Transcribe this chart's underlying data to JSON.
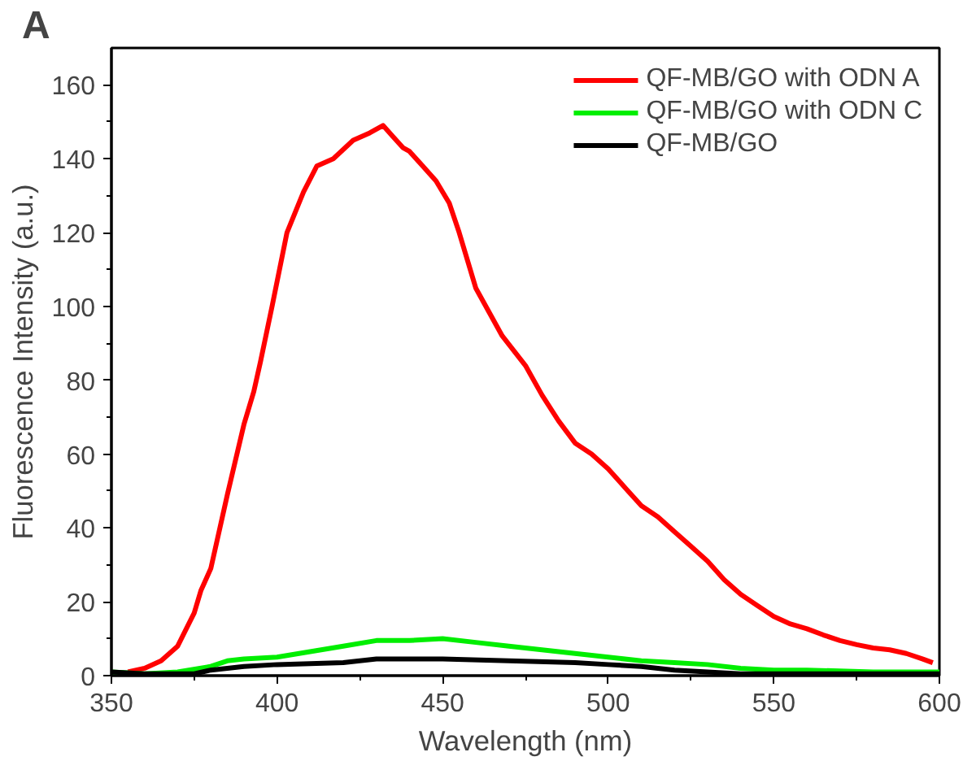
{
  "chart_data": {
    "type": "line",
    "xlabel": "Wavelength (nm)",
    "ylabel": "Fluorescence Intensity (a.u.)",
    "annotations": [
      "A"
    ],
    "xlim": [
      350,
      600
    ],
    "xticks": [
      350,
      400,
      450,
      500,
      550,
      600
    ],
    "ylim": [
      0,
      170
    ],
    "yticks": [
      0,
      20,
      40,
      60,
      80,
      100,
      120,
      140,
      160
    ],
    "grid": false,
    "legend": "top right",
    "line_style": "solid",
    "marker": "none",
    "series": [
      {
        "name": "QF-MB/GO with ODN A",
        "color": "#ff0000",
        "x": [
          355,
          360,
          365,
          370,
          375,
          377,
          380,
          385,
          390,
          393,
          395,
          398.5,
          403,
          408,
          412,
          417,
          423,
          428,
          432,
          435,
          438,
          440,
          444,
          448,
          452,
          455,
          460,
          468,
          475,
          480,
          485,
          490,
          495,
          500,
          505,
          510,
          515,
          520,
          525,
          530,
          535,
          540,
          545,
          550,
          555,
          560,
          565,
          570,
          575,
          580,
          585,
          590,
          595,
          598
        ],
        "values": [
          1,
          2,
          4,
          8,
          17,
          23,
          29,
          49,
          68,
          77,
          85,
          100,
          120,
          131,
          138,
          140,
          145,
          147,
          149,
          146,
          143,
          142,
          138,
          134,
          128,
          120,
          105,
          92,
          84,
          76,
          69,
          63,
          60,
          56,
          51,
          46,
          43,
          39,
          35,
          31,
          26,
          22,
          19,
          16,
          14,
          12.7,
          11,
          9.5,
          8.4,
          7.5,
          7,
          6,
          4.5,
          3.5
        ]
      },
      {
        "name": "QF-MB/GO with ODN C",
        "color": "#00ee00",
        "x": [
          350,
          360,
          370,
          380,
          385,
          390,
          400,
          410,
          420,
          430,
          440,
          450,
          460,
          470,
          480,
          490,
          500,
          510,
          520,
          530,
          540,
          550,
          560,
          580,
          600
        ],
        "values": [
          1,
          0.5,
          1,
          2.5,
          4,
          4.5,
          5,
          6.5,
          8,
          9.5,
          9.5,
          10,
          9,
          8,
          7,
          6,
          5,
          4,
          3.5,
          3,
          2,
          1.5,
          1.5,
          1,
          1
        ]
      },
      {
        "name": "QF-MB/GO",
        "color": "#000000",
        "x": [
          350,
          360,
          375,
          380,
          390,
          400,
          420,
          430,
          450,
          470,
          490,
          500,
          510,
          520,
          530,
          540,
          560,
          600
        ],
        "values": [
          1,
          0.5,
          0.5,
          1.5,
          2.5,
          3,
          3.5,
          4.5,
          4.5,
          4,
          3.5,
          3,
          2.5,
          1.5,
          1,
          0.5,
          0.5,
          0.5
        ]
      }
    ]
  }
}
